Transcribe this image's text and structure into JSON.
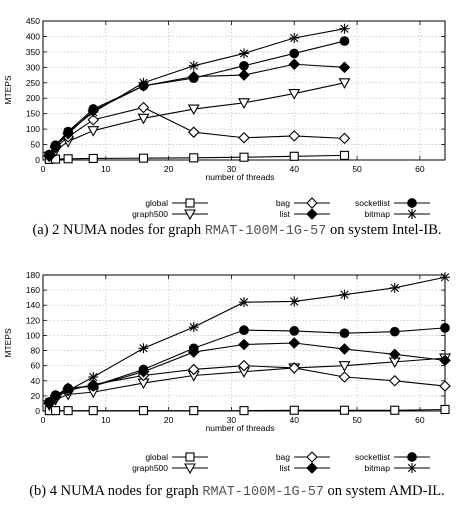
{
  "chart_data": [
    {
      "type": "line",
      "ylabel": "MTEPS",
      "xlabel": "number of threads",
      "xlim": [
        0,
        64
      ],
      "ylim": [
        0,
        450
      ],
      "xticks": [
        0,
        10,
        20,
        30,
        40,
        50,
        60
      ],
      "yticks": [
        0,
        50,
        100,
        150,
        200,
        250,
        300,
        350,
        400,
        450
      ],
      "grid": true,
      "legend_position": "bottom, outside plot area",
      "caption": {
        "prefix": "(a) 2 NUMA nodes for graph ",
        "graph": "RMAT-100M-1G-57",
        "suffix": " on system Intel-IB."
      },
      "series": [
        {
          "name": "global",
          "marker": "square",
          "x": [
            1,
            2,
            4,
            8,
            16,
            24,
            32,
            40,
            48
          ],
          "y": [
            2,
            3,
            4,
            5,
            6,
            7,
            9,
            12,
            15
          ]
        },
        {
          "name": "graph500",
          "marker": "triangle-down",
          "x": [
            1,
            2,
            4,
            8,
            16,
            24,
            32,
            40,
            48
          ],
          "y": [
            12,
            30,
            60,
            95,
            135,
            165,
            185,
            215,
            250
          ]
        },
        {
          "name": "bag",
          "marker": "diamond-open",
          "x": [
            1,
            2,
            4,
            8,
            16,
            24,
            32,
            40,
            48
          ],
          "y": [
            12,
            40,
            75,
            130,
            170,
            90,
            72,
            78,
            70
          ]
        },
        {
          "name": "list",
          "marker": "diamond-filled",
          "x": [
            1,
            2,
            4,
            8,
            16,
            24,
            32,
            40,
            48
          ],
          "y": [
            15,
            45,
            85,
            160,
            240,
            270,
            275,
            310,
            300
          ]
        },
        {
          "name": "socketlist",
          "marker": "circle-filled",
          "x": [
            1,
            2,
            4,
            8,
            16,
            24,
            32,
            40,
            48
          ],
          "y": [
            18,
            48,
            92,
            165,
            240,
            265,
            305,
            345,
            385
          ]
        },
        {
          "name": "bitmap",
          "marker": "star",
          "x": [
            1,
            2,
            4,
            8,
            16,
            24,
            32,
            40,
            48
          ],
          "y": [
            15,
            45,
            90,
            155,
            250,
            305,
            345,
            395,
            425
          ]
        }
      ]
    },
    {
      "type": "line",
      "ylabel": "MTEPS",
      "xlabel": "number of threads",
      "xlim": [
        0,
        64
      ],
      "ylim": [
        0,
        180
      ],
      "xticks": [
        0,
        10,
        20,
        30,
        40,
        50,
        60
      ],
      "yticks": [
        0,
        20,
        40,
        60,
        80,
        100,
        120,
        140,
        160,
        180
      ],
      "grid": true,
      "legend_position": "bottom, outside plot area",
      "caption": {
        "prefix": "(b) 4 NUMA nodes for graph ",
        "graph": "RMAT-100M-1G-57",
        "suffix": " on system AMD-IL."
      },
      "series": [
        {
          "name": "global",
          "marker": "square",
          "x": [
            1,
            2,
            4,
            8,
            16,
            24,
            32,
            40,
            48,
            56,
            64
          ],
          "y": [
            0.5,
            0.5,
            0.5,
            0.5,
            0.5,
            0.5,
            0.5,
            1,
            1,
            1,
            2
          ]
        },
        {
          "name": "graph500",
          "marker": "triangle-down",
          "x": [
            1,
            2,
            4,
            8,
            16,
            24,
            32,
            40,
            48,
            56,
            64
          ],
          "y": [
            8,
            15,
            22,
            25,
            37,
            47,
            52,
            57,
            60,
            65,
            70
          ]
        },
        {
          "name": "bag",
          "marker": "diamond-open",
          "x": [
            1,
            2,
            4,
            8,
            16,
            24,
            32,
            40,
            48,
            56,
            64
          ],
          "y": [
            10,
            18,
            27,
            35,
            47,
            55,
            60,
            57,
            45,
            40,
            33
          ]
        },
        {
          "name": "list",
          "marker": "diamond-filled",
          "x": [
            1,
            2,
            4,
            8,
            16,
            24,
            32,
            40,
            48,
            56,
            64
          ],
          "y": [
            10,
            20,
            30,
            33,
            52,
            78,
            88,
            90,
            82,
            75,
            67
          ]
        },
        {
          "name": "socketlist",
          "marker": "circle-filled",
          "x": [
            1,
            2,
            4,
            8,
            16,
            24,
            32,
            40,
            48,
            56,
            64
          ],
          "y": [
            12,
            21,
            30,
            33,
            55,
            83,
            107,
            106,
            103,
            105,
            110
          ]
        },
        {
          "name": "bitmap",
          "marker": "star",
          "x": [
            1,
            2,
            4,
            8,
            16,
            24,
            32,
            40,
            48,
            56,
            64
          ],
          "y": [
            12,
            20,
            27,
            45,
            83,
            111,
            144,
            145,
            154,
            163,
            177
          ]
        }
      ]
    }
  ]
}
